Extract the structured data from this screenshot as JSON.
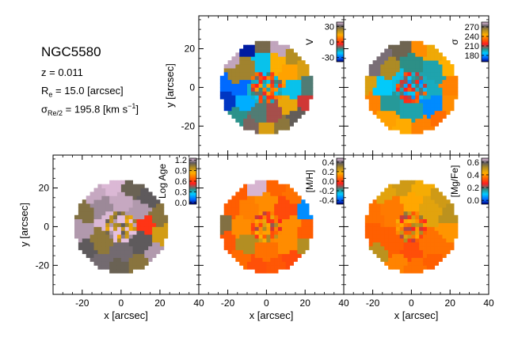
{
  "galaxy": {
    "name": "NGC5580",
    "redshift_label": "z = 0.011",
    "re_symbol": "R",
    "re_sub": "e",
    "re_value": "= 15.0 [arcsec]",
    "sigma_symbol": "σ",
    "sigma_sub": "Re/2",
    "sigma_value_a": "= 195.8 [km s",
    "sigma_sup": "−1",
    "sigma_value_b": "]"
  },
  "colors": {
    "tick": "#000000",
    "axis": "#000000",
    "background": "#ffffff"
  },
  "chart_data": [
    {
      "type": "heatmap",
      "id": "velocity",
      "title": "",
      "xlabel": "",
      "ylabel": "y [arcsec]",
      "xlim": [
        -35,
        40
      ],
      "ylim": [
        -35,
        37
      ],
      "xticks": [
        -20,
        0,
        20,
        40
      ],
      "yticks": [
        -20,
        0,
        20
      ],
      "show_xticklabels": false,
      "show_yticklabels": true,
      "colorbar": {
        "label": "V",
        "range": [
          -38,
          38
        ],
        "ticks": [
          30,
          0,
          -30
        ],
        "ticklabels": [
          "30",
          "0",
          "-30"
        ]
      },
      "map_center": [
        0,
        0
      ],
      "map_radius": 24,
      "base_value": -5,
      "cells": [
        {
          "x": -18,
          "y": 16,
          "v": 36
        },
        {
          "x": -10,
          "y": 20,
          "v": -36
        },
        {
          "x": -2,
          "y": 22,
          "v": 28
        },
        {
          "x": 6,
          "y": 21,
          "v": 36
        },
        {
          "x": 14,
          "y": 17,
          "v": 22
        },
        {
          "x": 20,
          "y": 10,
          "v": 18
        },
        {
          "x": 22,
          "y": 1,
          "v": -12
        },
        {
          "x": 21,
          "y": -8,
          "v": -6
        },
        {
          "x": 16,
          "y": -15,
          "v": 30
        },
        {
          "x": 8,
          "y": -20,
          "v": 26
        },
        {
          "x": 0,
          "y": -22,
          "v": 18
        },
        {
          "x": -8,
          "y": -20,
          "v": -10
        },
        {
          "x": -15,
          "y": -15,
          "v": -14
        },
        {
          "x": -21,
          "y": -6,
          "v": -34
        },
        {
          "x": -22,
          "y": 3,
          "v": -30
        },
        {
          "x": -16,
          "y": 6,
          "v": 24
        },
        {
          "x": -10,
          "y": 11,
          "v": 24
        },
        {
          "x": -3,
          "y": 13,
          "v": -20
        },
        {
          "x": 5,
          "y": 13,
          "v": 14
        },
        {
          "x": 12,
          "y": 8,
          "v": 12
        },
        {
          "x": 14,
          "y": -1,
          "v": -20
        },
        {
          "x": 12,
          "y": -9,
          "v": 16
        },
        {
          "x": 4,
          "y": -13,
          "v": -8
        },
        {
          "x": -4,
          "y": -13,
          "v": -12
        },
        {
          "x": -11,
          "y": -8,
          "v": -24
        },
        {
          "x": -14,
          "y": 0,
          "v": -30
        },
        {
          "x": -2,
          "y": 2,
          "v": 6
        },
        {
          "x": 4,
          "y": 0,
          "v": 10
        },
        {
          "x": -6,
          "y": -3,
          "v": -18
        }
      ]
    },
    {
      "type": "heatmap",
      "id": "dispersion",
      "title": "",
      "xlabel": "",
      "ylabel": "",
      "xlim": [
        -35,
        40
      ],
      "ylim": [
        -35,
        37
      ],
      "xticks": [
        -20,
        0,
        20,
        40
      ],
      "yticks": [
        -20,
        0,
        20
      ],
      "show_xticklabels": false,
      "show_yticklabels": false,
      "colorbar": {
        "label": "σ",
        "range": [
          160,
          285
        ],
        "ticks": [
          270,
          240,
          210,
          180
        ],
        "ticklabels": [
          "270",
          "240",
          "210",
          "180"
        ]
      },
      "map_center": [
        0,
        0
      ],
      "map_radius": 24,
      "base_value": 205,
      "cells": [
        {
          "x": -16,
          "y": 17,
          "v": 275
        },
        {
          "x": -6,
          "y": 22,
          "v": 270
        },
        {
          "x": 4,
          "y": 22,
          "v": 238
        },
        {
          "x": 13,
          "y": 19,
          "v": 248
        },
        {
          "x": 20,
          "y": 11,
          "v": 245
        },
        {
          "x": 22,
          "y": 1,
          "v": 236
        },
        {
          "x": 21,
          "y": -9,
          "v": 238
        },
        {
          "x": 15,
          "y": -16,
          "v": 232
        },
        {
          "x": 6,
          "y": -21,
          "v": 236
        },
        {
          "x": -4,
          "y": -21,
          "v": 244
        },
        {
          "x": -13,
          "y": -16,
          "v": 242
        },
        {
          "x": -20,
          "y": -8,
          "v": 236
        },
        {
          "x": -23,
          "y": 2,
          "v": 252
        },
        {
          "x": -20,
          "y": 10,
          "v": 275
        },
        {
          "x": -12,
          "y": 10,
          "v": 260
        },
        {
          "x": 12,
          "y": 8,
          "v": 196
        },
        {
          "x": 11,
          "y": -10,
          "v": 178
        },
        {
          "x": -12,
          "y": -9,
          "v": 198
        },
        {
          "x": -15,
          "y": 0,
          "v": 188
        },
        {
          "x": 0,
          "y": 12,
          "v": 200
        },
        {
          "x": 0,
          "y": -12,
          "v": 196
        },
        {
          "x": 8,
          "y": 0,
          "v": 194
        },
        {
          "x": -6,
          "y": 4,
          "v": 190
        }
      ]
    },
    {
      "type": "heatmap",
      "id": "log-age",
      "title": "",
      "xlabel": "x [arcsec]",
      "ylabel": "y [arcsec]",
      "xlim": [
        -35,
        40
      ],
      "ylim": [
        -35,
        37
      ],
      "xticks": [
        -20,
        0,
        20,
        40
      ],
      "yticks": [
        -20,
        0,
        20
      ],
      "show_xticklabels": true,
      "show_yticklabels": true,
      "colorbar": {
        "label": "Log Age",
        "range": [
          -0.05,
          1.25
        ],
        "ticks": [
          1.2,
          0.9,
          0.6,
          0.3,
          0.0
        ],
        "ticklabels": [
          "1.2",
          "0.9",
          "0.6",
          "0.3",
          "0.0"
        ]
      },
      "map_center": [
        0,
        0
      ],
      "map_radius": 24,
      "base_value": 1.15,
      "cells": [
        {
          "x": -14,
          "y": 18,
          "v": 1.22
        },
        {
          "x": -4,
          "y": 22,
          "v": 1.24
        },
        {
          "x": 6,
          "y": 21,
          "v": 1.1
        },
        {
          "x": 14,
          "y": 16,
          "v": 1.12
        },
        {
          "x": 20,
          "y": 6,
          "v": 1.05
        },
        {
          "x": 22,
          "y": -4,
          "v": 0.92
        },
        {
          "x": 18,
          "y": -14,
          "v": 1.2
        },
        {
          "x": 9,
          "y": -20,
          "v": 1.05
        },
        {
          "x": -1,
          "y": -22,
          "v": 1.1
        },
        {
          "x": -10,
          "y": -19,
          "v": 1.14
        },
        {
          "x": -18,
          "y": -12,
          "v": 1.12
        },
        {
          "x": -22,
          "y": -2,
          "v": 1.2
        },
        {
          "x": -20,
          "y": 8,
          "v": 1.06
        },
        {
          "x": -10,
          "y": 10,
          "v": 1.18
        },
        {
          "x": 10,
          "y": 8,
          "v": 1.2
        },
        {
          "x": 10,
          "y": -8,
          "v": 1.12
        },
        {
          "x": -10,
          "y": -8,
          "v": 1.04
        },
        {
          "x": 0,
          "y": 12,
          "v": 1.22
        },
        {
          "x": 0,
          "y": -12,
          "v": 1.14
        },
        {
          "x": 12,
          "y": 2,
          "v": 0.58
        },
        {
          "x": -6,
          "y": 4,
          "v": 1.24
        }
      ]
    },
    {
      "type": "heatmap",
      "id": "metallicity",
      "title": "",
      "xlabel": "x [arcsec]",
      "ylabel": "",
      "xlim": [
        -35,
        40
      ],
      "ylim": [
        -35,
        37
      ],
      "xticks": [
        -20,
        0,
        20,
        40
      ],
      "yticks": [
        -20,
        0,
        20
      ],
      "show_xticklabels": true,
      "show_yticklabels": false,
      "colorbar": {
        "label": "[M/H]",
        "range": [
          -0.48,
          0.48
        ],
        "ticks": [
          0.4,
          0.2,
          0.0,
          -0.2,
          -0.4
        ],
        "ticklabels": [
          "0.4",
          "0.2",
          "0.0",
          "-0.2",
          "-0.4"
        ]
      },
      "map_center": [
        0,
        0
      ],
      "map_radius": 24,
      "base_value": 0.08,
      "cells": [
        {
          "x": -15,
          "y": 17,
          "v": 0.05
        },
        {
          "x": -5,
          "y": 21,
          "v": 0.47
        },
        {
          "x": 5,
          "y": 21,
          "v": 0.06
        },
        {
          "x": 14,
          "y": 17,
          "v": 0.08
        },
        {
          "x": 21,
          "y": 9,
          "v": -0.34
        },
        {
          "x": 22,
          "y": -1,
          "v": 0.05
        },
        {
          "x": 21,
          "y": -10,
          "v": 0.28
        },
        {
          "x": 14,
          "y": -17,
          "v": 0.02
        },
        {
          "x": 5,
          "y": -21,
          "v": 0.04
        },
        {
          "x": -5,
          "y": -21,
          "v": 0.03
        },
        {
          "x": -14,
          "y": -16,
          "v": 0.07
        },
        {
          "x": -21,
          "y": -8,
          "v": 0.04
        },
        {
          "x": -23,
          "y": 2,
          "v": 0.34
        },
        {
          "x": -20,
          "y": 10,
          "v": 0.05
        },
        {
          "x": -10,
          "y": 10,
          "v": 0.1
        },
        {
          "x": 10,
          "y": 10,
          "v": 0.02
        },
        {
          "x": 11,
          "y": -9,
          "v": 0.12
        },
        {
          "x": -11,
          "y": -9,
          "v": 0.28
        },
        {
          "x": 0,
          "y": 12,
          "v": 0.12
        },
        {
          "x": 0,
          "y": -12,
          "v": 0.08
        },
        {
          "x": -13,
          "y": 0,
          "v": 0.12
        },
        {
          "x": 12,
          "y": 0,
          "v": 0.12
        }
      ]
    },
    {
      "type": "heatmap",
      "id": "alpha-fe",
      "title": "",
      "xlabel": "x [arcsec]",
      "ylabel": "",
      "xlim": [
        -35,
        40
      ],
      "ylim": [
        -35,
        37
      ],
      "xticks": [
        -20,
        0,
        20,
        40
      ],
      "yticks": [
        -20,
        0,
        20
      ],
      "show_xticklabels": true,
      "show_yticklabels": false,
      "colorbar": {
        "label": "[Mg/Fe]",
        "range": [
          -0.06,
          0.66
        ],
        "ticks": [
          0.6,
          0.4,
          0.2,
          0.0
        ],
        "ticklabels": [
          "0.6",
          "0.4",
          "0.2",
          "0.0"
        ]
      },
      "map_center": [
        0,
        0
      ],
      "map_radius": 24,
      "base_value": 0.38,
      "cells": [
        {
          "x": -14,
          "y": 18,
          "v": 0.46
        },
        {
          "x": -4,
          "y": 22,
          "v": 0.48
        },
        {
          "x": 6,
          "y": 21,
          "v": 0.44
        },
        {
          "x": 15,
          "y": 16,
          "v": 0.48
        },
        {
          "x": 21,
          "y": 7,
          "v": 0.5
        },
        {
          "x": 22,
          "y": -3,
          "v": 0.4
        },
        {
          "x": 20,
          "y": -12,
          "v": 0.36
        },
        {
          "x": 12,
          "y": -19,
          "v": 0.34
        },
        {
          "x": 2,
          "y": -22,
          "v": 0.36
        },
        {
          "x": -8,
          "y": -20,
          "v": 0.38
        },
        {
          "x": -17,
          "y": -14,
          "v": 0.5
        },
        {
          "x": -22,
          "y": -4,
          "v": 0.34
        },
        {
          "x": -21,
          "y": 7,
          "v": 0.36
        },
        {
          "x": -10,
          "y": 10,
          "v": 0.37
        },
        {
          "x": 10,
          "y": 10,
          "v": 0.46
        },
        {
          "x": 10,
          "y": -10,
          "v": 0.36
        },
        {
          "x": -10,
          "y": -10,
          "v": 0.34
        },
        {
          "x": 0,
          "y": 12,
          "v": 0.42
        },
        {
          "x": 0,
          "y": -12,
          "v": 0.32
        }
      ]
    }
  ]
}
